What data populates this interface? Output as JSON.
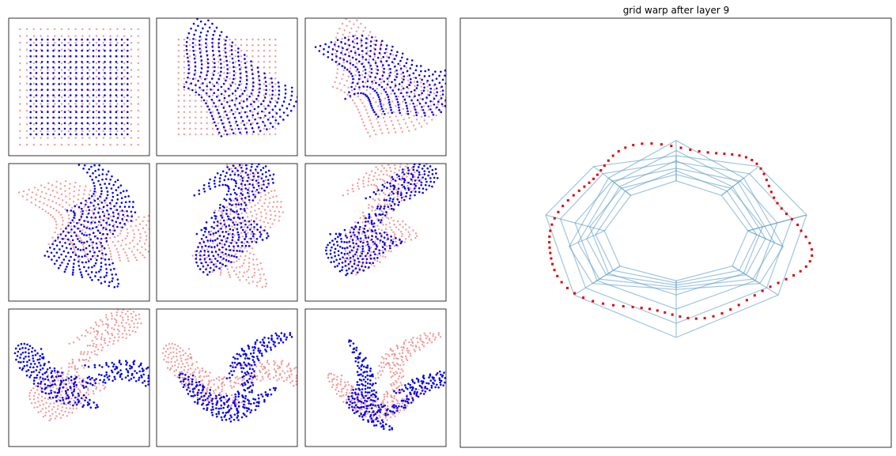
{
  "figure": {
    "title": "grid warp after layer 9"
  }
}
